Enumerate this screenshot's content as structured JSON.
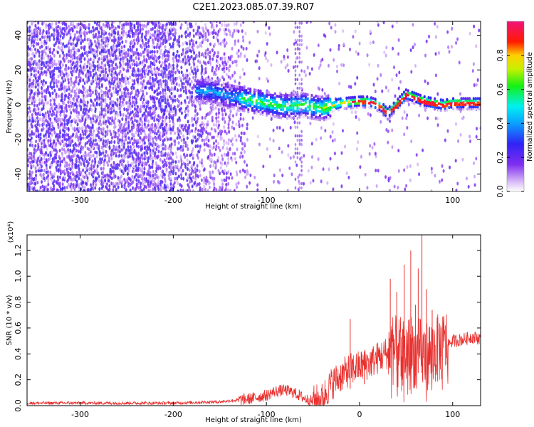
{
  "title": "C2E1.2023.085.07.39.R07",
  "colors": {
    "signal": "#e8312f",
    "axis": "#000000",
    "background": "#ffffff"
  },
  "chart_data": [
    {
      "type": "heatmap",
      "xlabel": "Height of straight line (km)",
      "ylabel": "Frequency (Hz)",
      "xlim": [
        -357,
        130
      ],
      "ylim": [
        -50,
        48
      ],
      "xticks": [
        -300,
        -200,
        -100,
        0,
        100
      ],
      "yticks": [
        -40,
        -20,
        0,
        20,
        40
      ],
      "colorbar": {
        "label": "Normalized spectral amplitude",
        "ticks": [
          "0.0",
          "0.2",
          "0.4",
          "0.6",
          "0.8"
        ],
        "range": [
          0.0,
          1.0
        ],
        "colormap": "white-purple-blue-cyan-green-yellow-red-magenta"
      },
      "ridge": {
        "x": [
          -160,
          -140,
          -120,
          -100,
          -80,
          -60,
          -40,
          -20,
          0,
          10,
          20,
          25,
          30,
          40,
          50,
          60,
          70,
          80,
          90,
          100,
          130
        ],
        "freq": [
          8,
          5,
          3,
          1,
          -1,
          0,
          -2,
          1,
          2,
          2,
          0,
          -2,
          -5,
          0,
          6,
          4,
          2,
          1,
          0,
          1,
          1
        ]
      },
      "background_noise_x_range": [
        -357,
        -140
      ]
    },
    {
      "type": "line",
      "xlabel": "Height of straight line (km)",
      "ylabel": "SNR (10 * v/v)",
      "y_multiplier_label": "(x10⁴)",
      "xlim": [
        -357,
        130
      ],
      "ylim": [
        0,
        1.32
      ],
      "xticks": [
        -300,
        -200,
        -100,
        0,
        100
      ],
      "yticks": [
        "0.0",
        "0.2",
        "0.4",
        "0.6",
        "0.8",
        "1.0",
        "1.2"
      ],
      "series": [
        {
          "x": [
            -357,
            -200,
            -150,
            -120,
            -100,
            -90,
            -80,
            -70,
            -60,
            -50,
            -40,
            -35,
            -30,
            -20,
            -10,
            0,
            10,
            20,
            30,
            33,
            40,
            50,
            55,
            60,
            65,
            70,
            80,
            90,
            100,
            110,
            120,
            130
          ],
          "y": [
            0.02,
            0.02,
            0.03,
            0.05,
            0.08,
            0.11,
            0.12,
            0.1,
            0.06,
            0.03,
            0.05,
            0.12,
            0.17,
            0.23,
            0.28,
            0.3,
            0.33,
            0.37,
            0.41,
            0.44,
            0.42,
            0.4,
            0.45,
            0.38,
            0.42,
            0.38,
            0.42,
            0.46,
            0.5,
            0.51,
            0.53,
            0.52
          ]
        }
      ],
      "peaks": {
        "x": [
          -10,
          5,
          33,
          40,
          48,
          55,
          60,
          63,
          67,
          72,
          78
        ],
        "y": [
          0.67,
          0.42,
          0.98,
          0.88,
          1.09,
          1.2,
          0.78,
          1.06,
          1.32,
          0.9,
          0.74
        ]
      }
    }
  ]
}
